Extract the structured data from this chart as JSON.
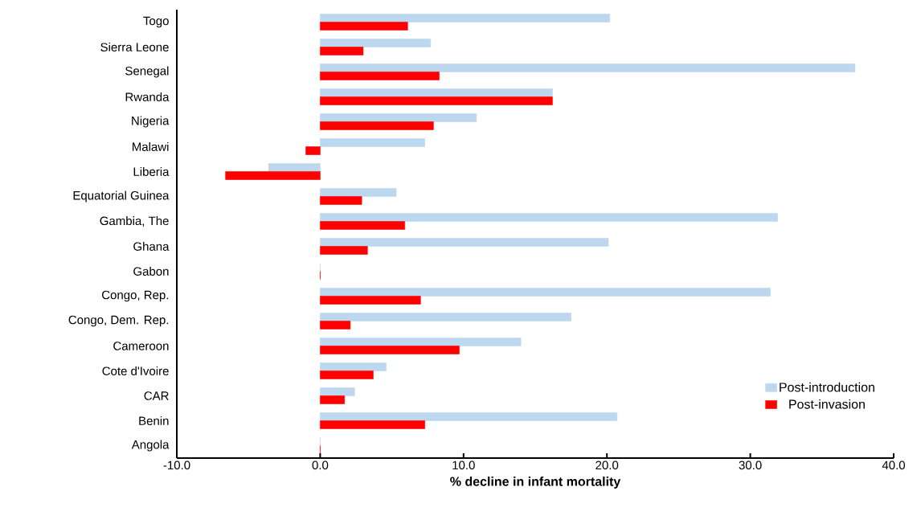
{
  "chart_data": {
    "type": "bar",
    "orientation": "horizontal",
    "xlabel": "% decline in infant mortality",
    "categories": [
      "Togo",
      "Sierra Leone",
      "Senegal",
      "Rwanda",
      "Nigeria",
      "Malawi",
      "Liberia",
      "Equatorial Guinea",
      "Gambia, The",
      "Ghana",
      "Gabon",
      "Congo, Rep.",
      "Congo, Dem. Rep.",
      "Cameroon",
      "Cote d'Ivoire",
      "CAR",
      "Benin",
      "Angola"
    ],
    "series": [
      {
        "name": "Post-introduction",
        "color": "#bdd7ee",
        "values": [
          20.2,
          7.7,
          37.3,
          16.2,
          10.9,
          7.3,
          -3.6,
          5.3,
          31.9,
          20.1,
          0,
          31.4,
          17.5,
          14.0,
          4.6,
          2.4,
          20.7,
          0
        ]
      },
      {
        "name": "Post-invasion",
        "color": "#ff0000",
        "values": [
          6.1,
          3.0,
          8.3,
          16.2,
          7.9,
          -1.0,
          -6.6,
          2.9,
          5.9,
          3.3,
          0,
          7.0,
          2.1,
          9.7,
          3.7,
          1.7,
          7.3,
          0
        ]
      }
    ],
    "xlim": [
      -10,
      40
    ],
    "xticks": [
      {
        "value": -10,
        "label": "-10.0"
      },
      {
        "value": 0,
        "label": "0.0"
      },
      {
        "value": 10,
        "label": "10.0"
      },
      {
        "value": 20,
        "label": "20.0"
      },
      {
        "value": 30,
        "label": "30.0"
      },
      {
        "value": 40,
        "label": "40.0"
      }
    ],
    "grid": false,
    "legend": "bottom right"
  }
}
